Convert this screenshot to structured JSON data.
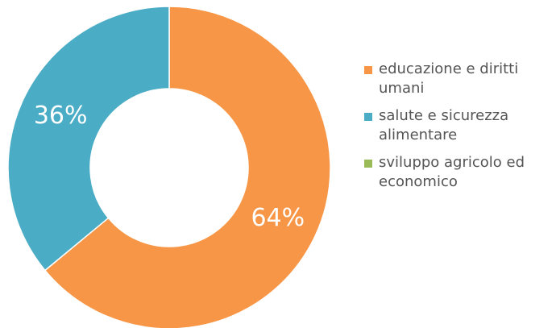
{
  "chart_data": {
    "type": "pie",
    "donut": true,
    "categories": [
      "educazione e diritti umani",
      "salute e sicurezza alimentare",
      "sviluppo agricolo ed economico"
    ],
    "values": [
      64,
      36,
      0
    ],
    "data_labels": [
      "64%",
      "36%",
      ""
    ],
    "colors": [
      "#f79646",
      "#4bacc6",
      "#9bbb59"
    ],
    "legend_position": "right"
  }
}
